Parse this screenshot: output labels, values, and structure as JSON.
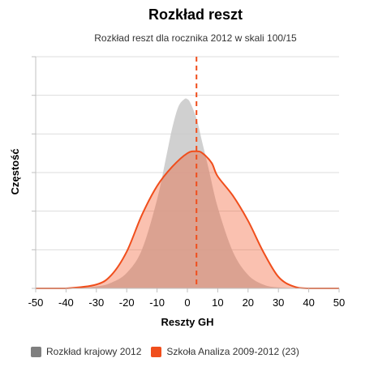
{
  "chart_data": {
    "type": "area",
    "title": "Rozkład reszt",
    "subtitle": "Rozkład reszt dla rocznika 2012 w skali 100/15",
    "xlabel": "Reszty GH",
    "ylabel": "Częstość",
    "xlim": [
      -50,
      50
    ],
    "ylim": [
      0,
      1.2
    ],
    "xticks": [
      -50,
      -40,
      -30,
      -20,
      -10,
      0,
      10,
      20,
      30,
      40,
      50
    ],
    "yticks": [
      0,
      0.2,
      0.4,
      0.6,
      0.8,
      1.0,
      1.2
    ],
    "y_tick_labels_visible": false,
    "grid": true,
    "legend_position": "bottom-left",
    "vertical_line": {
      "x": 3,
      "style": "dashed",
      "color": "#f04e1c"
    },
    "series": [
      {
        "name": "Rozkład krajowy 2012",
        "color": "#c8c8c8",
        "x": [
          -50,
          -40,
          -30,
          -25,
          -20,
          -15,
          -10,
          -7,
          -5,
          -3,
          -1,
          0,
          1,
          3,
          5,
          7,
          10,
          15,
          20,
          25,
          30,
          40,
          50
        ],
        "y": [
          0,
          0,
          0.01,
          0.03,
          0.08,
          0.2,
          0.46,
          0.68,
          0.83,
          0.94,
          0.98,
          0.98,
          0.96,
          0.88,
          0.75,
          0.62,
          0.42,
          0.19,
          0.07,
          0.02,
          0.005,
          0,
          0
        ]
      },
      {
        "name": "Szkoła Analiza 2009-2012 (23)",
        "color": "#f04e1c",
        "x": [
          -50,
          -40,
          -30,
          -25,
          -20,
          -15,
          -10,
          -5,
          0,
          3,
          5,
          8,
          10,
          15,
          20,
          25,
          30,
          35,
          40,
          50
        ],
        "y": [
          0,
          0,
          0.02,
          0.07,
          0.19,
          0.38,
          0.53,
          0.63,
          0.7,
          0.71,
          0.7,
          0.65,
          0.58,
          0.48,
          0.35,
          0.19,
          0.06,
          0.01,
          0,
          0
        ]
      }
    ]
  }
}
